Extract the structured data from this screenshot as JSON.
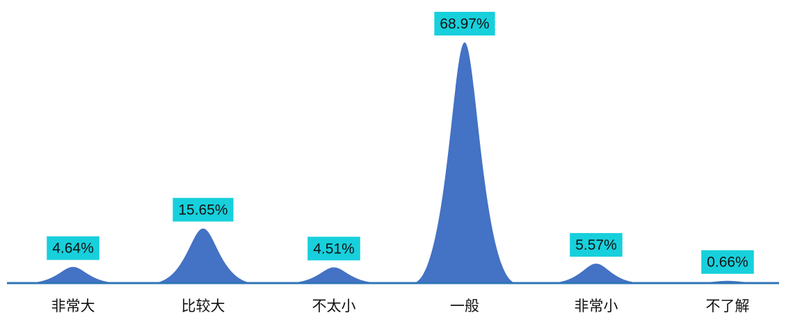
{
  "chart_data": {
    "type": "area",
    "categories": [
      "非常大",
      "比较大",
      "不太小",
      "一般",
      "非常小",
      "不了解"
    ],
    "values": [
      4.64,
      15.65,
      4.51,
      68.97,
      5.57,
      0.66
    ],
    "data_labels": [
      "4.64%",
      "15.65%",
      "4.51%",
      "68.97%",
      "5.57%",
      "0.66%"
    ],
    "ylim": [
      0,
      75
    ],
    "grid": false,
    "legend": "none",
    "colors": {
      "fill": "#4472c4",
      "baseline": "#2e75b6",
      "label_background": "#17d0dc"
    }
  }
}
